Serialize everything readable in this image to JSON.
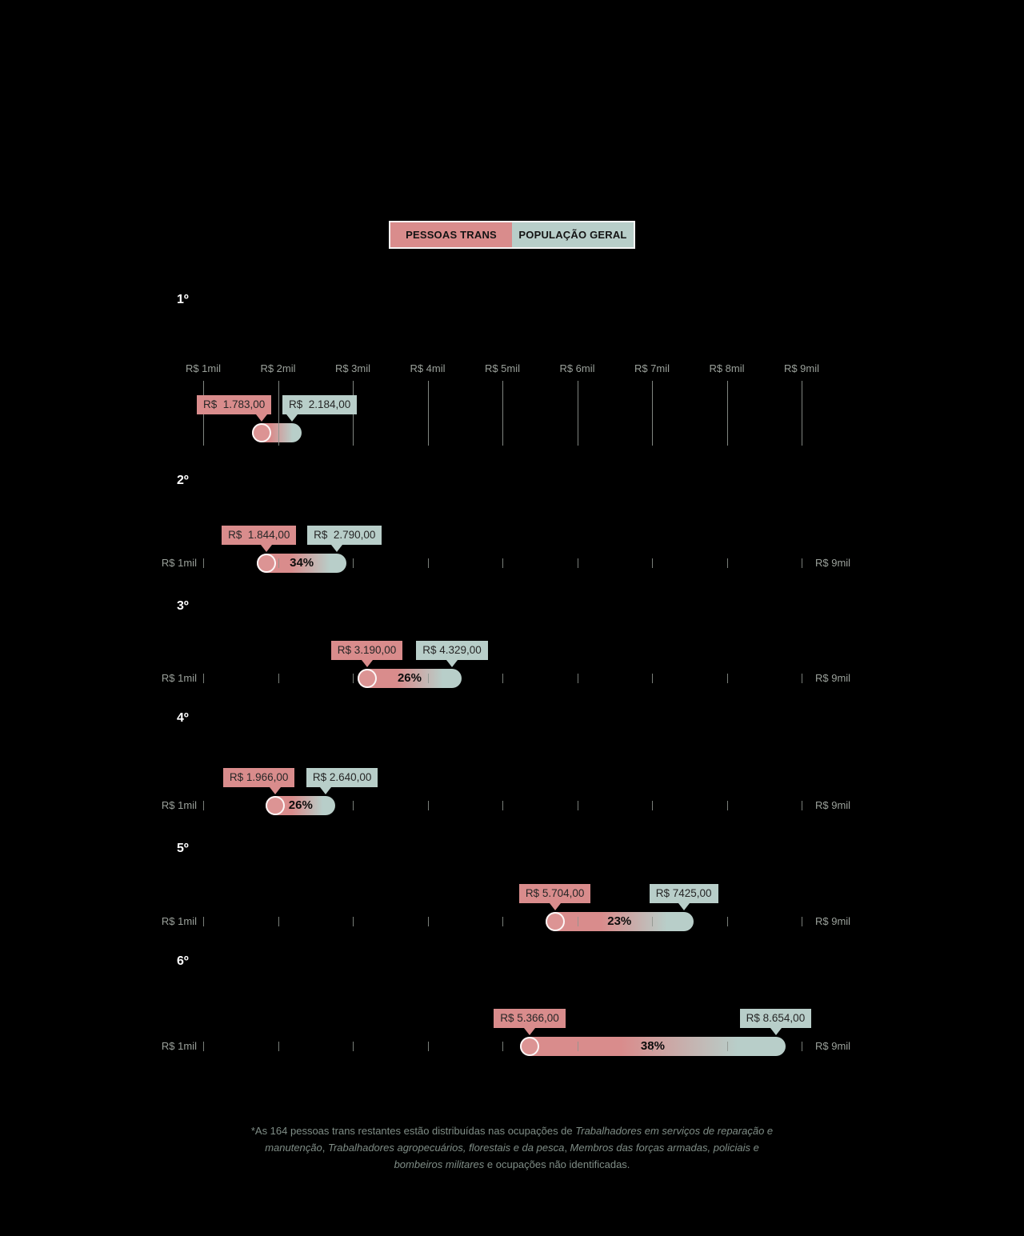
{
  "legend": {
    "trans_label": "PESSOAS TRANS",
    "geral_label": "POPULAÇÃO GERAL"
  },
  "colors": {
    "background": "#000000",
    "trans": "#d98c8c",
    "geral": "#b8cec9",
    "axis": "#8e948e",
    "axis_label": "#9aa09a",
    "row_title": "#ffffff",
    "percent_text": "#0c0c0c",
    "callout_text": "#262626",
    "footnote_text": "#7f8d86"
  },
  "chart_data": {
    "type": "dumbbell",
    "title": "",
    "unit": "R$ (salário mensal)",
    "axis": {
      "min": 1000,
      "max": 9000,
      "tick_step": 1000,
      "tick_labels": [
        "R$ 1mil",
        "R$ 2mil",
        "R$ 3mil",
        "R$ 4mil",
        "R$ 5mil",
        "R$ 6mil",
        "R$ 7mil",
        "R$ 8mil",
        "R$ 9mil"
      ],
      "compact_min_label": "R$ 1mil",
      "compact_max_label": "R$ 9mil"
    },
    "series_names": [
      "PESSOAS TRANS",
      "POPULAÇÃO GERAL"
    ],
    "rows": [
      {
        "rank": "1º",
        "trans_value": 1783,
        "geral_value": 2184,
        "trans_label": "R$  1.783,00",
        "geral_label": "R$  2.184,00",
        "gap_percent": ""
      },
      {
        "rank": "2º",
        "trans_value": 1844,
        "geral_value": 2790,
        "trans_label": "R$  1.844,00",
        "geral_label": "R$  2.790,00",
        "gap_percent": "34%"
      },
      {
        "rank": "3º",
        "trans_value": 3190,
        "geral_value": 4329,
        "trans_label": "R$ 3.190,00",
        "geral_label": "R$ 4.329,00",
        "gap_percent": "26%"
      },
      {
        "rank": "4º",
        "trans_value": 1966,
        "geral_value": 2640,
        "trans_label": "R$ 1.966,00",
        "geral_label": "R$ 2.640,00",
        "gap_percent": "26%"
      },
      {
        "rank": "5º",
        "trans_value": 5704,
        "geral_value": 7425,
        "trans_label": "R$ 5.704,00",
        "geral_label": "R$ 7425,00",
        "gap_percent": "23%"
      },
      {
        "rank": "6º",
        "trans_value": 5366,
        "geral_value": 8654,
        "trans_label": "R$ 5.366,00",
        "geral_label": "R$ 8.654,00",
        "gap_percent": "38%"
      }
    ]
  },
  "footnote": {
    "segments": [
      {
        "text": "*As 164 pessoas trans restantes estão distribuídas nas ocupações de ",
        "italic": false
      },
      {
        "text": "Trabalhadores em serviços de reparação e manutenção",
        "italic": true
      },
      {
        "text": ", ",
        "italic": false
      },
      {
        "text": "Trabalhadores agropecuários, florestais e da pesca",
        "italic": true
      },
      {
        "text": ", ",
        "italic": false
      },
      {
        "text": "Membros das forças armadas, policiais e bombeiros militares",
        "italic": true
      },
      {
        "text": " e ocupações não identificadas.",
        "italic": false
      }
    ]
  }
}
